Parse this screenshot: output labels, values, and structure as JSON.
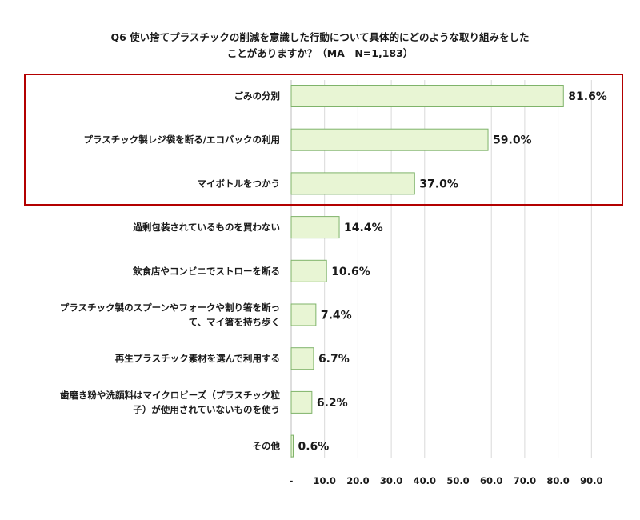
{
  "chart_data": {
    "type": "bar",
    "orientation": "horizontal",
    "title_line1": "Q6 使い捨てプラスチックの削減を意識した行動について具体的にどのような取り組みをした",
    "title_line2": "ことがありますか？（MA　N=1,183）",
    "categories": [
      [
        "ごみの分別"
      ],
      [
        "プラスチック製レジ袋を断る/エコバックの利用"
      ],
      [
        "マイボトルをつかう"
      ],
      [
        "過剰包装されているものを買わない"
      ],
      [
        "飲食店やコンビニでストローを断る"
      ],
      [
        "プラスチック製のスプーンやフォークや割り箸を断っ",
        "て、マイ箸を持ち歩く"
      ],
      [
        "再生プラスチック素材を選んで利用する"
      ],
      [
        "歯磨き粉や洗顔料はマイクロビーズ（プラスチック粒",
        "子）が使用されていないものを使う"
      ],
      [
        "その他"
      ]
    ],
    "values": [
      81.6,
      59.0,
      37.0,
      14.4,
      10.6,
      7.4,
      6.7,
      6.2,
      0.6
    ],
    "value_labels": [
      "81.6%",
      "59.0%",
      "37.0%",
      "14.4%",
      "10.6%",
      "7.4%",
      "6.7%",
      "6.2%",
      "0.6%"
    ],
    "xlim": [
      0,
      90
    ],
    "xticks": [
      "-",
      "10.0",
      "20.0",
      "30.0",
      "40.0",
      "50.0",
      "60.0",
      "70.0",
      "80.0",
      "90.0"
    ],
    "grid": true,
    "highlighted_categories": [
      0,
      1,
      2
    ],
    "bar_color": "#e8f5d4",
    "bar_edge_color": "#7fb36a",
    "highlight_color": "#b30000"
  }
}
